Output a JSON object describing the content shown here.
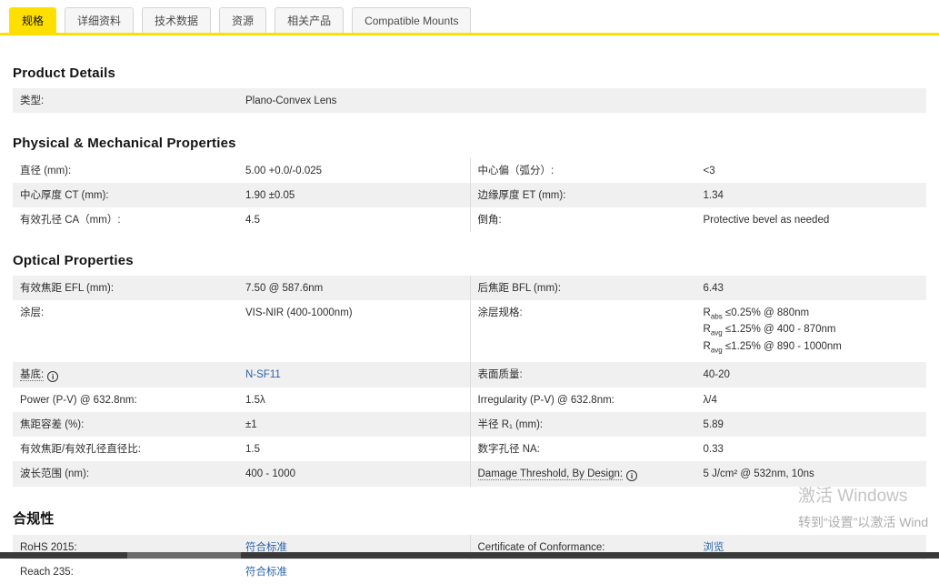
{
  "colors": {
    "accent_yellow": "#ffdf00",
    "link_blue": "#2a62a9",
    "row_gray": "#f0f0f0"
  },
  "tabs": [
    {
      "label": "规格",
      "active": true
    },
    {
      "label": "详细资料",
      "active": false
    },
    {
      "label": "技术数据",
      "active": false
    },
    {
      "label": "资源",
      "active": false
    },
    {
      "label": "相关产品",
      "active": false
    },
    {
      "label": "Compatible Mounts",
      "active": false
    }
  ],
  "sections": {
    "product": {
      "title": "Product Details",
      "rows": [
        {
          "label": "类型:",
          "value": "Plano-Convex Lens"
        }
      ]
    },
    "physical": {
      "title": "Physical & Mechanical Properties",
      "rows": [
        {
          "left": {
            "label": "直径 (mm):",
            "value": "5.00 +0.0/-0.025"
          },
          "right": {
            "label": "中心偏（弧分）:",
            "value": "<3"
          }
        },
        {
          "left": {
            "label": "中心厚度 CT (mm):",
            "value": "1.90 ±0.05"
          },
          "right": {
            "label": "边缘厚度 ET (mm):",
            "value": "1.34"
          }
        },
        {
          "left": {
            "label": "有效孔径 CA（mm）:",
            "value": "4.5"
          },
          "right": {
            "label": "倒角:",
            "value": "Protective bevel as needed"
          }
        }
      ]
    },
    "optical": {
      "title": "Optical Properties",
      "rows": [
        {
          "left": {
            "label": "有效焦距 EFL (mm):",
            "value": "7.50 @ 587.6nm"
          },
          "right": {
            "label": "后焦距 BFL (mm):",
            "value": "6.43"
          }
        },
        {
          "left": {
            "label": "涂层:",
            "value": "VIS-NIR (400-1000nm)"
          },
          "right": {
            "label": "涂层规格:",
            "coating_lines": [
              {
                "pre": "R",
                "sub": "abs",
                "post": " ≤0.25% @ 880nm"
              },
              {
                "pre": "R",
                "sub": "avg",
                "post": " ≤1.25% @ 400 - 870nm"
              },
              {
                "pre": "R",
                "sub": "avg",
                "post": " ≤1.25% @ 890 - 1000nm"
              }
            ]
          }
        },
        {
          "left": {
            "label": "基底:",
            "has_info": true,
            "link_value": "N-SF11"
          },
          "right": {
            "label": "表面质量:",
            "value": "40-20"
          }
        },
        {
          "left": {
            "label": "Power (P-V) @ 632.8nm:",
            "value": "1.5λ"
          },
          "right": {
            "label": "Irregularity (P-V) @ 632.8nm:",
            "value": "λ/4"
          }
        },
        {
          "left": {
            "label": "焦距容差 (%):",
            "value": "±1"
          },
          "right": {
            "label": "半径 R₁ (mm):",
            "value": "5.89"
          }
        },
        {
          "left": {
            "label": "有效焦距/有效孔径直径比:",
            "value": "1.5"
          },
          "right": {
            "label": "数字孔径 NA:",
            "value": "0.33"
          }
        },
        {
          "left": {
            "label": "波长范围 (nm):",
            "value": "400 - 1000"
          },
          "right": {
            "label": "Damage Threshold, By Design:",
            "has_info": true,
            "value": "5 J/cm² @ 532nm, 10ns"
          }
        }
      ]
    },
    "compliance": {
      "title": "合规性",
      "rows": [
        {
          "left": {
            "label": "RoHS 2015:",
            "link_value": "符合标准"
          },
          "right": {
            "label": "Certificate of Conformance:",
            "link_value": "浏览"
          }
        },
        {
          "left": {
            "label": "Reach 235:",
            "link_value": "符合标准"
          },
          "right": null
        }
      ]
    }
  },
  "watermark": {
    "line1": "激活 Windows",
    "line2": "转到“设置”以激活 Wind"
  }
}
